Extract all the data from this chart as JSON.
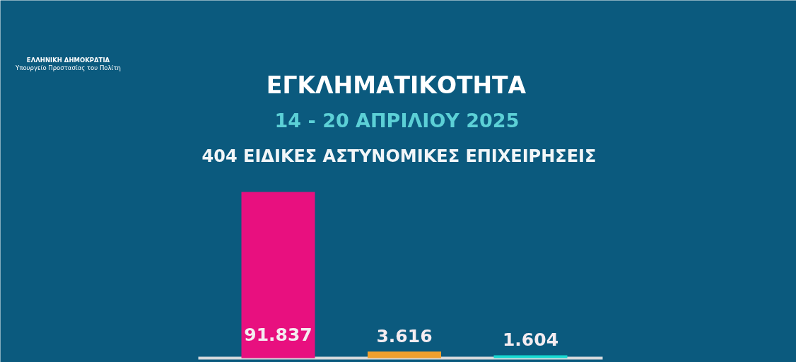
{
  "chart_data": {
    "type": "bar",
    "title": "ΕΓΚΛΗΜΑΤΙΚΟΤΗΤΑ",
    "subtitle": "14 - 20 ΑΠΡΙΛΙΟΥ 2025",
    "annotations": [
      "404 ΕΙΔΙΚΕΣ ΑΣΤΥΝΟΜΙΚΕΣ ΕΠΙΧΕΙΡΗΣΕΙΣ",
      "ΕΛΛΗΝΙΚΗ ΔΗΜΟΚΡΑΤΙΑ",
      "Υπουργείο Προστασίας του Πολίτη"
    ],
    "categories": [
      null,
      null,
      null
    ],
    "values": [
      91837,
      3616,
      1604
    ],
    "colors": [
      "#e8107f",
      "#f0a02e",
      "#17d9d2"
    ],
    "value_labels": [
      "91.837",
      "3.616",
      "1.604"
    ]
  }
}
